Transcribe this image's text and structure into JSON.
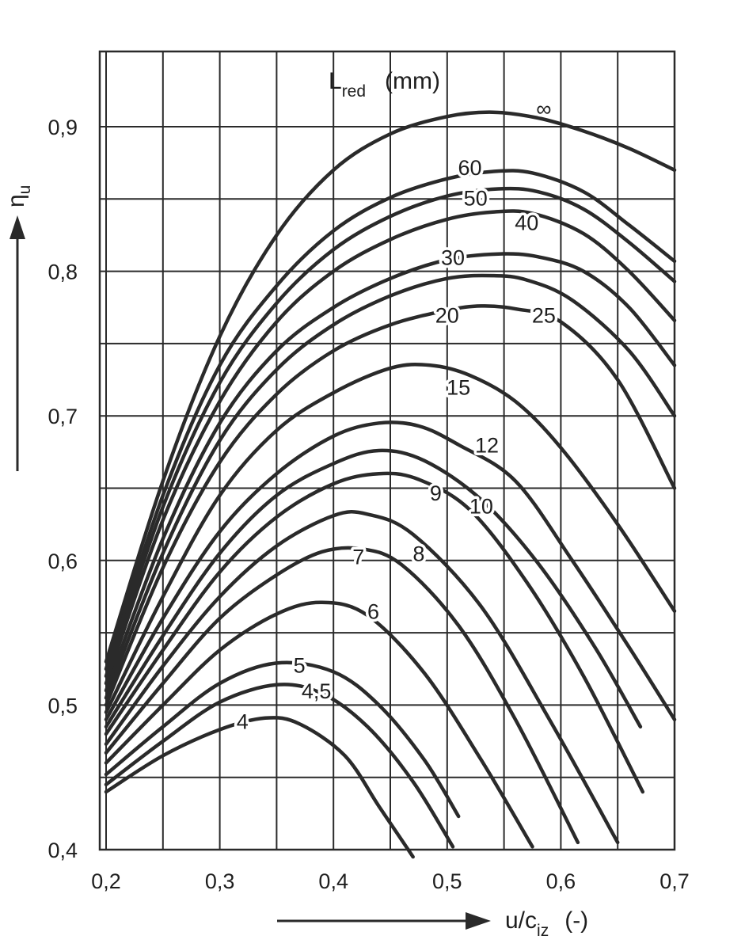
{
  "chart_data": {
    "type": "line",
    "xlabel_main": "u/c",
    "xlabel_sub": "iz",
    "xlabel_unit": "(-)",
    "ylabel_main": "η",
    "ylabel_sub": "u",
    "legend_main": "L",
    "legend_sub": "red",
    "legend_unit": "(mm)",
    "xlim": [
      0.2,
      0.7
    ],
    "ylim": [
      0.4,
      0.95
    ],
    "grid": true,
    "x_ticks": [
      0.2,
      0.25,
      0.3,
      0.35,
      0.4,
      0.45,
      0.5,
      0.55,
      0.6,
      0.65,
      0.7
    ],
    "x_tick_labels": [
      "0,2",
      "0,3",
      "0,4",
      "0,5",
      "0,6",
      "0,7"
    ],
    "y_ticks": [
      0.4,
      0.45,
      0.5,
      0.55,
      0.6,
      0.65,
      0.7,
      0.75,
      0.8,
      0.85,
      0.9
    ],
    "y_tick_labels": [
      "0,4",
      "0,5",
      "0,6",
      "0,7",
      "0,8",
      "0,9"
    ],
    "line_color": "#2a2a2a",
    "series": [
      {
        "name": "4",
        "points": [
          [
            0.2,
            0.44
          ],
          [
            0.25,
            0.465
          ],
          [
            0.3,
            0.483
          ],
          [
            0.34,
            0.491
          ],
          [
            0.37,
            0.487
          ],
          [
            0.41,
            0.465
          ],
          [
            0.44,
            0.43
          ],
          [
            0.47,
            0.395
          ]
        ]
      },
      {
        "name": "4,5",
        "points": [
          [
            0.2,
            0.445
          ],
          [
            0.25,
            0.475
          ],
          [
            0.3,
            0.502
          ],
          [
            0.35,
            0.514
          ],
          [
            0.39,
            0.508
          ],
          [
            0.43,
            0.485
          ],
          [
            0.47,
            0.447
          ],
          [
            0.505,
            0.402
          ]
        ]
      },
      {
        "name": "5",
        "points": [
          [
            0.2,
            0.452
          ],
          [
            0.25,
            0.485
          ],
          [
            0.3,
            0.515
          ],
          [
            0.35,
            0.529
          ],
          [
            0.4,
            0.523
          ],
          [
            0.44,
            0.5
          ],
          [
            0.48,
            0.462
          ],
          [
            0.51,
            0.423
          ]
        ]
      },
      {
        "name": "6",
        "points": [
          [
            0.2,
            0.46
          ],
          [
            0.25,
            0.5
          ],
          [
            0.3,
            0.538
          ],
          [
            0.35,
            0.563
          ],
          [
            0.39,
            0.571
          ],
          [
            0.43,
            0.562
          ],
          [
            0.48,
            0.522
          ],
          [
            0.53,
            0.462
          ],
          [
            0.575,
            0.402
          ]
        ]
      },
      {
        "name": "7",
        "points": [
          [
            0.2,
            0.467
          ],
          [
            0.25,
            0.515
          ],
          [
            0.3,
            0.56
          ],
          [
            0.35,
            0.59
          ],
          [
            0.39,
            0.606
          ],
          [
            0.425,
            0.608
          ],
          [
            0.46,
            0.597
          ],
          [
            0.51,
            0.555
          ],
          [
            0.56,
            0.49
          ],
          [
            0.615,
            0.405
          ]
        ]
      },
      {
        "name": "8",
        "points": [
          [
            0.2,
            0.473
          ],
          [
            0.25,
            0.527
          ],
          [
            0.3,
            0.575
          ],
          [
            0.35,
            0.61
          ],
          [
            0.4,
            0.631
          ],
          [
            0.43,
            0.632
          ],
          [
            0.47,
            0.618
          ],
          [
            0.53,
            0.568
          ],
          [
            0.59,
            0.49
          ],
          [
            0.65,
            0.405
          ]
        ]
      },
      {
        "name": "9",
        "points": [
          [
            0.2,
            0.48
          ],
          [
            0.25,
            0.538
          ],
          [
            0.3,
            0.592
          ],
          [
            0.35,
            0.63
          ],
          [
            0.4,
            0.653
          ],
          [
            0.44,
            0.66
          ],
          [
            0.475,
            0.656
          ],
          [
            0.52,
            0.635
          ],
          [
            0.57,
            0.585
          ],
          [
            0.62,
            0.52
          ],
          [
            0.672,
            0.44
          ]
        ]
      },
      {
        "name": "10",
        "points": [
          [
            0.2,
            0.485
          ],
          [
            0.25,
            0.548
          ],
          [
            0.3,
            0.605
          ],
          [
            0.35,
            0.645
          ],
          [
            0.4,
            0.667
          ],
          [
            0.44,
            0.676
          ],
          [
            0.48,
            0.669
          ],
          [
            0.53,
            0.642
          ],
          [
            0.58,
            0.598
          ],
          [
            0.63,
            0.54
          ],
          [
            0.67,
            0.485
          ]
        ]
      },
      {
        "name": "12",
        "points": [
          [
            0.2,
            0.49
          ],
          [
            0.25,
            0.56
          ],
          [
            0.3,
            0.62
          ],
          [
            0.35,
            0.66
          ],
          [
            0.4,
            0.686
          ],
          [
            0.44,
            0.695
          ],
          [
            0.475,
            0.693
          ],
          [
            0.51,
            0.68
          ],
          [
            0.56,
            0.655
          ],
          [
            0.61,
            0.6
          ],
          [
            0.66,
            0.54
          ],
          [
            0.7,
            0.49
          ]
        ]
      },
      {
        "name": "15",
        "points": [
          [
            0.2,
            0.495
          ],
          [
            0.25,
            0.575
          ],
          [
            0.3,
            0.645
          ],
          [
            0.35,
            0.69
          ],
          [
            0.4,
            0.716
          ],
          [
            0.45,
            0.733
          ],
          [
            0.485,
            0.735
          ],
          [
            0.52,
            0.728
          ],
          [
            0.56,
            0.71
          ],
          [
            0.6,
            0.678
          ],
          [
            0.65,
            0.625
          ],
          [
            0.7,
            0.565
          ]
        ]
      },
      {
        "name": "20",
        "points": [
          [
            0.2,
            0.5
          ],
          [
            0.25,
            0.595
          ],
          [
            0.3,
            0.668
          ],
          [
            0.35,
            0.715
          ],
          [
            0.4,
            0.745
          ],
          [
            0.45,
            0.763
          ],
          [
            0.5,
            0.773
          ],
          [
            0.53,
            0.776
          ],
          [
            0.56,
            0.774
          ],
          [
            0.6,
            0.765
          ],
          [
            0.65,
            0.725
          ],
          [
            0.7,
            0.65
          ]
        ]
      },
      {
        "name": "25",
        "points": [
          [
            0.2,
            0.505
          ],
          [
            0.25,
            0.605
          ],
          [
            0.3,
            0.683
          ],
          [
            0.35,
            0.732
          ],
          [
            0.4,
            0.763
          ],
          [
            0.45,
            0.783
          ],
          [
            0.5,
            0.795
          ],
          [
            0.54,
            0.797
          ],
          [
            0.57,
            0.794
          ],
          [
            0.61,
            0.78
          ],
          [
            0.66,
            0.745
          ],
          [
            0.7,
            0.7
          ]
        ]
      },
      {
        "name": "30",
        "points": [
          [
            0.2,
            0.51
          ],
          [
            0.25,
            0.615
          ],
          [
            0.3,
            0.695
          ],
          [
            0.35,
            0.745
          ],
          [
            0.4,
            0.775
          ],
          [
            0.45,
            0.795
          ],
          [
            0.5,
            0.808
          ],
          [
            0.545,
            0.812
          ],
          [
            0.58,
            0.81
          ],
          [
            0.62,
            0.8
          ],
          [
            0.66,
            0.775
          ],
          [
            0.7,
            0.735
          ]
        ]
      },
      {
        "name": "40",
        "points": [
          [
            0.2,
            0.515
          ],
          [
            0.25,
            0.628
          ],
          [
            0.3,
            0.71
          ],
          [
            0.35,
            0.765
          ],
          [
            0.4,
            0.8
          ],
          [
            0.45,
            0.822
          ],
          [
            0.5,
            0.836
          ],
          [
            0.54,
            0.841
          ],
          [
            0.575,
            0.84
          ],
          [
            0.62,
            0.826
          ],
          [
            0.66,
            0.8
          ],
          [
            0.7,
            0.766
          ]
        ]
      },
      {
        "name": "50",
        "points": [
          [
            0.2,
            0.52
          ],
          [
            0.25,
            0.637
          ],
          [
            0.3,
            0.723
          ],
          [
            0.35,
            0.778
          ],
          [
            0.4,
            0.815
          ],
          [
            0.45,
            0.838
          ],
          [
            0.5,
            0.852
          ],
          [
            0.545,
            0.857
          ],
          [
            0.58,
            0.855
          ],
          [
            0.62,
            0.843
          ],
          [
            0.66,
            0.82
          ],
          [
            0.7,
            0.793
          ]
        ]
      },
      {
        "name": "60",
        "points": [
          [
            0.2,
            0.525
          ],
          [
            0.25,
            0.645
          ],
          [
            0.3,
            0.735
          ],
          [
            0.35,
            0.79
          ],
          [
            0.4,
            0.828
          ],
          [
            0.45,
            0.851
          ],
          [
            0.5,
            0.864
          ],
          [
            0.54,
            0.869
          ],
          [
            0.575,
            0.868
          ],
          [
            0.62,
            0.855
          ],
          [
            0.66,
            0.832
          ],
          [
            0.7,
            0.807
          ]
        ]
      },
      {
        "name": "∞",
        "points": [
          [
            0.2,
            0.53
          ],
          [
            0.25,
            0.655
          ],
          [
            0.3,
            0.755
          ],
          [
            0.35,
            0.825
          ],
          [
            0.4,
            0.87
          ],
          [
            0.45,
            0.895
          ],
          [
            0.5,
            0.907
          ],
          [
            0.54,
            0.91
          ],
          [
            0.58,
            0.906
          ],
          [
            0.62,
            0.897
          ],
          [
            0.66,
            0.885
          ],
          [
            0.7,
            0.87
          ]
        ]
      }
    ],
    "curve_labels": [
      {
        "text": "4",
        "x": 0.32,
        "y": 0.489
      },
      {
        "text": "4,5",
        "x": 0.385,
        "y": 0.51
      },
      {
        "text": "5",
        "x": 0.37,
        "y": 0.528
      },
      {
        "text": "6",
        "x": 0.435,
        "y": 0.565
      },
      {
        "text": "7",
        "x": 0.422,
        "y": 0.603
      },
      {
        "text": "8",
        "x": 0.475,
        "y": 0.605
      },
      {
        "text": "9",
        "x": 0.49,
        "y": 0.647
      },
      {
        "text": "10",
        "x": 0.53,
        "y": 0.638
      },
      {
        "text": "12",
        "x": 0.535,
        "y": 0.68
      },
      {
        "text": "15",
        "x": 0.51,
        "y": 0.72
      },
      {
        "text": "20",
        "x": 0.5,
        "y": 0.77
      },
      {
        "text": "25",
        "x": 0.585,
        "y": 0.77
      },
      {
        "text": "30",
        "x": 0.505,
        "y": 0.81
      },
      {
        "text": "40",
        "x": 0.57,
        "y": 0.834
      },
      {
        "text": "50",
        "x": 0.525,
        "y": 0.851
      },
      {
        "text": "60",
        "x": 0.52,
        "y": 0.872
      },
      {
        "text": "∞",
        "x": 0.585,
        "y": 0.913
      }
    ]
  }
}
